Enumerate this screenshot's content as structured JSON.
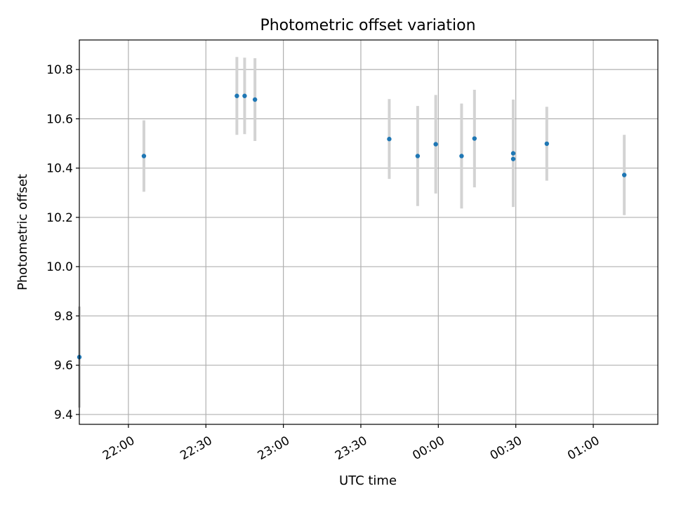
{
  "chart_data": {
    "type": "scatter",
    "title": "Photometric offset variation",
    "xlabel": "UTC time",
    "ylabel": "Photometric offset",
    "x_axis": {
      "kind": "time",
      "ticks": [
        "22:00",
        "22:30",
        "23:00",
        "23:30",
        "00:00",
        "00:30",
        "01:00"
      ],
      "xlim": [
        "21:41",
        "01:25"
      ]
    },
    "y_axis": {
      "ticks": [
        "9.4",
        "9.6",
        "9.8",
        "10.0",
        "10.2",
        "10.4",
        "10.6",
        "10.8"
      ],
      "ylim": [
        9.36,
        10.92
      ]
    },
    "grid": true,
    "colors": {
      "point": "#1f77b4",
      "errorbar": "#d3d3d3",
      "grid": "#b0b0b0"
    },
    "series": [
      {
        "points": [
          {
            "x": "21:41",
            "y": 9.633,
            "yerr": 0.205
          },
          {
            "x": "22:06",
            "y": 10.449,
            "yerr": 0.145
          },
          {
            "x": "22:42",
            "y": 10.693,
            "yerr": 0.158
          },
          {
            "x": "22:45",
            "y": 10.693,
            "yerr": 0.155
          },
          {
            "x": "22:49",
            "y": 10.678,
            "yerr": 0.168
          },
          {
            "x": "23:41",
            "y": 10.518,
            "yerr": 0.162
          },
          {
            "x": "23:52",
            "y": 10.449,
            "yerr": 0.203
          },
          {
            "x": "23:59",
            "y": 10.497,
            "yerr": 0.2
          },
          {
            "x": "00:09",
            "y": 10.449,
            "yerr": 0.213
          },
          {
            "x": "00:14",
            "y": 10.52,
            "yerr": 0.198
          },
          {
            "x": "00:29",
            "y": 10.437,
            "yerr": 0.19
          },
          {
            "x": "00:29",
            "y": 10.46,
            "yerr": 0.218
          },
          {
            "x": "00:42",
            "y": 10.499,
            "yerr": 0.15
          },
          {
            "x": "01:12",
            "y": 10.372,
            "yerr": 0.163
          }
        ]
      }
    ]
  }
}
